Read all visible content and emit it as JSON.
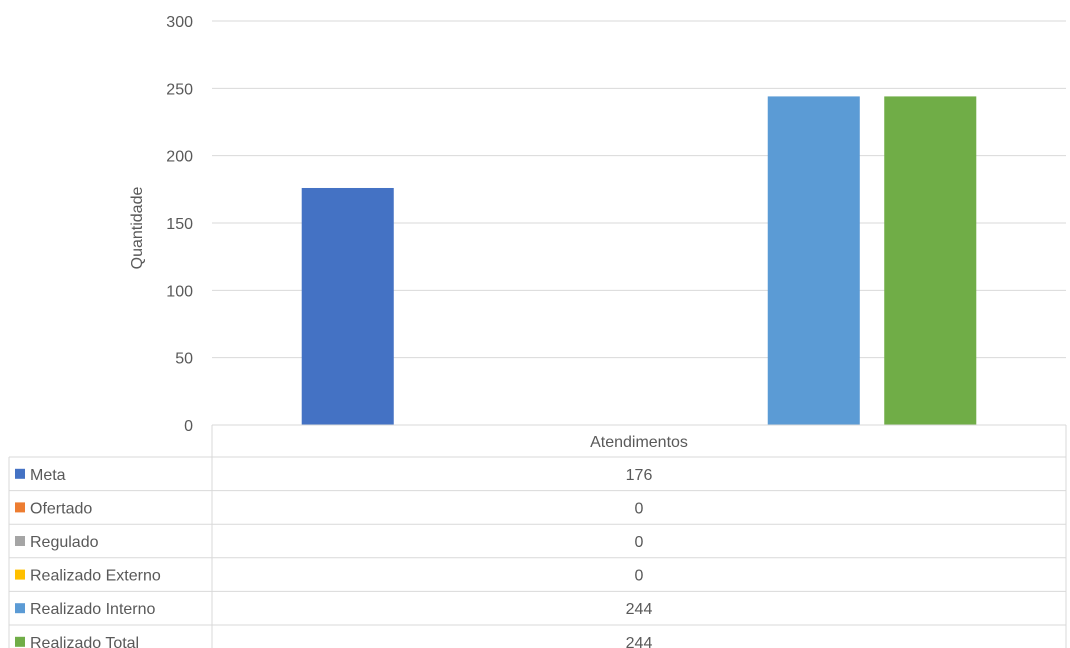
{
  "chart_data": {
    "type": "bar",
    "categories": [
      "Atendimentos"
    ],
    "ylabel": "Quantidade",
    "xlabel": "",
    "title": "",
    "ylim": [
      0,
      300
    ],
    "yticks": [
      0,
      50,
      100,
      150,
      200,
      250,
      300
    ],
    "grid": true,
    "legend_placement": "data-table-below",
    "series": [
      {
        "name": "Meta",
        "values": [
          176
        ],
        "color": "#4472C4"
      },
      {
        "name": "Ofertado",
        "values": [
          0
        ],
        "color": "#ED7D31"
      },
      {
        "name": "Regulado",
        "values": [
          0
        ],
        "color": "#A5A5A5"
      },
      {
        "name": "Realizado Externo",
        "values": [
          0
        ],
        "color": "#FFC000"
      },
      {
        "name": "Realizado Interno",
        "values": [
          244
        ],
        "color": "#5B9BD5"
      },
      {
        "name": "Realizado Total",
        "values": [
          244
        ],
        "color": "#70AD47"
      }
    ]
  }
}
